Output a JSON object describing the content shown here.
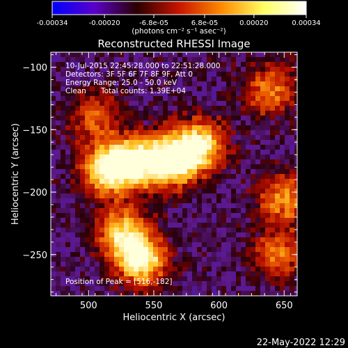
{
  "colorbar": {
    "ticks": [
      "-0.00034",
      "-0.00020",
      "-6.8e-05",
      "6.8e-05",
      "0.00020",
      "0.00034"
    ],
    "values": [
      -0.00034,
      -0.0002,
      -6.8e-05,
      6.8e-05,
      0.0002,
      0.00034
    ],
    "unit": "(photons cm⁻² s⁻¹ asec⁻²)",
    "colors": [
      "#0000ff",
      "#5a00c8",
      "#2a0000",
      "#c81400",
      "#ff8a00",
      "#ffff64",
      "#ffffff"
    ]
  },
  "chart_data": {
    "type": "heatmap",
    "title": "Reconstructed RHESSI Image",
    "xlabel": "Heliocentric X (arcsec)",
    "ylabel": "Heliocentric Y (arcsec)",
    "xlim": [
      471,
      660
    ],
    "ylim": [
      -283,
      -88
    ],
    "xticks": [
      500,
      550,
      600,
      650
    ],
    "yticks": [
      -100,
      -150,
      -200,
      -250
    ],
    "annotations": {
      "time": "10-Jul-2015 22:45:28.000 to 22:51:28.000",
      "detectors": "Detectors: 3F 5F 6F 7F 8F 9F, Att 0",
      "energy": "Energy Range: 25.0 - 50.0 keV",
      "method": "Clean",
      "counts": "Total counts: 1.39E+04",
      "peak": "Position of Peak = [516,-182]"
    },
    "peak": [
      516,
      -182
    ],
    "bright_regions": [
      {
        "x": 516,
        "y": -182,
        "level": 1.0
      },
      {
        "x": 540,
        "y": -175,
        "level": 0.75
      },
      {
        "x": 565,
        "y": -175,
        "level": 0.9
      },
      {
        "x": 585,
        "y": -162,
        "level": 0.8
      },
      {
        "x": 540,
        "y": -255,
        "level": 0.85
      },
      {
        "x": 526,
        "y": -232,
        "level": 0.7
      },
      {
        "x": 640,
        "y": -118,
        "level": 0.55
      },
      {
        "x": 650,
        "y": -205,
        "level": 0.6
      },
      {
        "x": 645,
        "y": -250,
        "level": 0.5
      },
      {
        "x": 505,
        "y": -140,
        "level": 0.45
      }
    ]
  },
  "footer": {
    "date": "22-May-2022 12:29"
  }
}
